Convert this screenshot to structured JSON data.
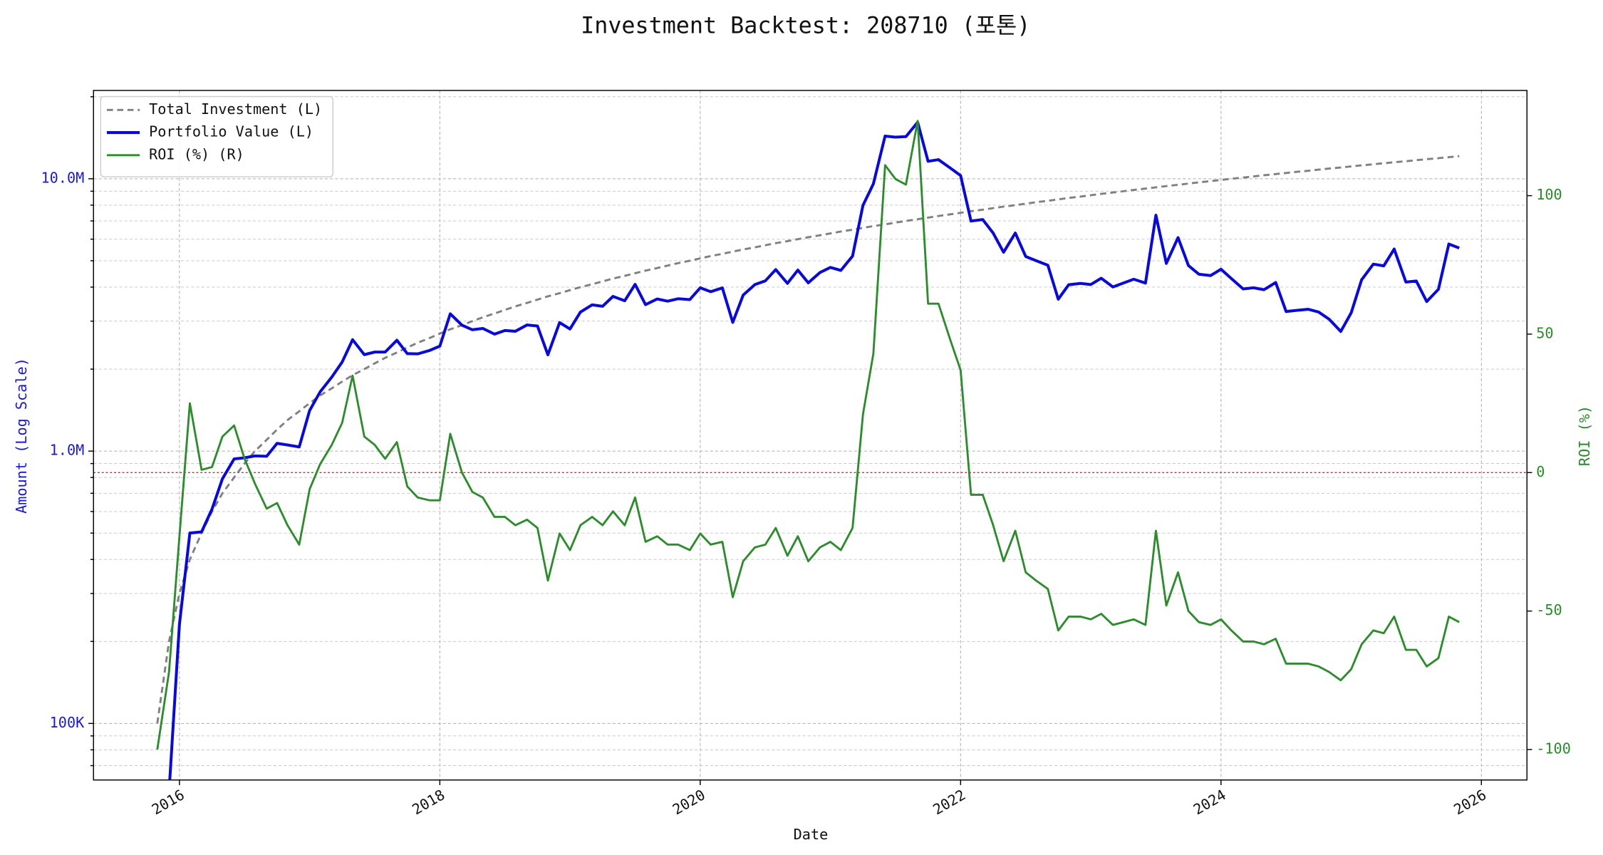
{
  "chart_data": {
    "type": "line",
    "title": "Investment Backtest: 208710 (포톤)",
    "xlabel": "Date",
    "ylabel": "Amount (Log Scale)",
    "y2label": "ROI (%)",
    "log_y": true,
    "grid": true,
    "legend": "upper left",
    "xlim": [
      2015.34,
      2026.35
    ],
    "xticks": [
      2016,
      2018,
      2020,
      2022,
      2024,
      2026
    ],
    "ylim": [
      62000,
      21100000
    ],
    "yticks": [
      {
        "value": 100000,
        "label": "100K"
      },
      {
        "value": 1000000,
        "label": "1.0M"
      },
      {
        "value": 10000000,
        "label": "10.0M"
      }
    ],
    "yminorticks": [
      70000,
      80000,
      90000,
      200000,
      300000,
      400000,
      500000,
      600000,
      700000,
      800000,
      900000,
      2000000,
      3000000,
      4000000,
      5000000,
      6000000,
      7000000,
      8000000,
      9000000,
      20000000
    ],
    "y2lim": [
      -111,
      138
    ],
    "y2ticks": [
      -100,
      -50,
      0,
      50,
      100
    ],
    "reference_lines": [
      {
        "axis": "y2",
        "value": 0,
        "color": "#d62728"
      }
    ],
    "x": [
      2015.83,
      2015.92,
      2016.0,
      2016.08,
      2016.17,
      2016.25,
      2016.33,
      2016.42,
      2016.5,
      2016.58,
      2016.67,
      2016.75,
      2016.83,
      2016.92,
      2017.0,
      2017.08,
      2017.17,
      2017.25,
      2017.33,
      2017.42,
      2017.5,
      2017.58,
      2017.67,
      2017.75,
      2017.83,
      2017.92,
      2018.0,
      2018.08,
      2018.17,
      2018.25,
      2018.33,
      2018.42,
      2018.5,
      2018.58,
      2018.67,
      2018.75,
      2018.83,
      2018.92,
      2019.0,
      2019.08,
      2019.17,
      2019.25,
      2019.33,
      2019.42,
      2019.5,
      2019.58,
      2019.67,
      2019.75,
      2019.83,
      2019.92,
      2020.0,
      2020.08,
      2020.17,
      2020.25,
      2020.33,
      2020.42,
      2020.5,
      2020.58,
      2020.67,
      2020.75,
      2020.83,
      2020.92,
      2021.0,
      2021.08,
      2021.17,
      2021.25,
      2021.33,
      2021.42,
      2021.5,
      2021.58,
      2021.67,
      2021.75,
      2021.83,
      2021.92,
      2022.0,
      2022.08,
      2022.17,
      2022.25,
      2022.33,
      2022.42,
      2022.5,
      2022.58,
      2022.67,
      2022.75,
      2022.83,
      2022.92,
      2023.0,
      2023.08,
      2023.17,
      2023.25,
      2023.33,
      2023.42,
      2023.5,
      2023.58,
      2023.67,
      2023.75,
      2023.83,
      2023.92,
      2024.0,
      2024.08,
      2024.17,
      2024.25,
      2024.33,
      2024.42,
      2024.5,
      2024.58,
      2024.67,
      2024.75,
      2024.83,
      2024.92,
      2025.0,
      2025.08,
      2025.17,
      2025.25,
      2025.33,
      2025.42,
      2025.5,
      2025.58,
      2025.67,
      2025.75,
      2025.83
    ],
    "series": [
      {
        "name": "Total Investment (L)",
        "color": "#808080",
        "linestyle": "dashed",
        "axis": "y",
        "values": [
          100000,
          200000,
          300000,
          400000,
          500000,
          600000,
          700000,
          800000,
          900000,
          1000000,
          1100000,
          1200000,
          1300000,
          1400000,
          1500000,
          1600000,
          1700000,
          1800000,
          1900000,
          2000000,
          2100000,
          2200000,
          2300000,
          2400000,
          2500000,
          2600000,
          2700000,
          2800000,
          2900000,
          3000000,
          3100000,
          3200000,
          3300000,
          3400000,
          3500000,
          3600000,
          3700000,
          3800000,
          3900000,
          4000000,
          4100000,
          4200000,
          4300000,
          4400000,
          4500000,
          4600000,
          4700000,
          4800000,
          4900000,
          5000000,
          5100000,
          5200000,
          5300000,
          5400000,
          5500000,
          5600000,
          5700000,
          5800000,
          5900000,
          6000000,
          6100000,
          6200000,
          6300000,
          6400000,
          6500000,
          6600000,
          6700000,
          6800000,
          6900000,
          7000000,
          7100000,
          7200000,
          7300000,
          7400000,
          7500000,
          7600000,
          7700000,
          7800000,
          7900000,
          8000000,
          8100000,
          8200000,
          8300000,
          8400000,
          8500000,
          8600000,
          8700000,
          8800000,
          8900000,
          9000000,
          9100000,
          9200000,
          9300000,
          9400000,
          9500000,
          9600000,
          9700000,
          9800000,
          9900000,
          10000000,
          10100000,
          10200000,
          10300000,
          10400000,
          10500000,
          10600000,
          10700000,
          10800000,
          10900000,
          11000000,
          11100000,
          11200000,
          11300000,
          11400000,
          11500000,
          11600000,
          11700000,
          11800000,
          11900000,
          12000000,
          12100000
        ]
      },
      {
        "name": "Portfolio Value (L)",
        "color": "#0a0ad6",
        "linestyle": "solid",
        "axis": "y",
        "values": [
          null,
          56000,
          231000,
          500000,
          505000,
          612000,
          791000,
          936000,
          945000,
          960000,
          957000,
          1068000,
          1053000,
          1036000,
          1410000,
          1648000,
          1870000,
          2124000,
          2565000,
          2260000,
          2310000,
          2310000,
          2553000,
          2280000,
          2275000,
          2340000,
          2430000,
          3192000,
          2900000,
          2790000,
          2821000,
          2688000,
          2772000,
          2754000,
          2905000,
          2880000,
          2257000,
          2964000,
          2808000,
          3240000,
          3444000,
          3402000,
          3698000,
          3564000,
          4095000,
          3450000,
          3619000,
          3552000,
          3626000,
          3600000,
          3978000,
          3848000,
          3975000,
          2970000,
          3740000,
          4088000,
          4218000,
          4640000,
          4130000,
          4620000,
          4148000,
          4526000,
          4725000,
          4608000,
          5200000,
          7986000,
          9581000,
          14348000,
          14214000,
          14280000,
          16117000,
          11592000,
          11753000,
          10952000,
          10275000,
          6992000,
          7084000,
          6318000,
          5372000,
          6320000,
          5184000,
          5002000,
          4814000,
          3612000,
          4080000,
          4128000,
          4089000,
          4312000,
          4005000,
          4140000,
          4277000,
          4140000,
          7347000,
          4888000,
          6080000,
          4800000,
          4462000,
          4410000,
          4653000,
          4300000,
          3939000,
          3978000,
          3914000,
          4160000,
          3255000,
          3286000,
          3317000,
          3240000,
          3052000,
          2750000,
          3219000,
          4256000,
          4859000,
          4788000,
          5520000,
          4176000,
          4212000,
          3540000,
          3927000,
          5760000,
          5566000
        ]
      },
      {
        "name": "ROI (%) (R)",
        "color": "#2e8b2e",
        "linestyle": "solid",
        "axis": "y2",
        "values": [
          -100,
          -72,
          -23,
          25,
          1,
          2,
          13,
          17,
          5,
          -4,
          -13,
          -11,
          -19,
          -26,
          -6,
          3,
          10,
          18,
          35,
          13,
          10,
          5,
          11,
          -5,
          -9,
          -10,
          -10,
          14,
          0,
          -7,
          -9,
          -16,
          -16,
          -19,
          -17,
          -20,
          -39,
          -22,
          -28,
          -19,
          -16,
          -19,
          -14,
          -19,
          -9,
          -25,
          -23,
          -26,
          -26,
          -28,
          -22,
          -26,
          -25,
          -45,
          -32,
          -27,
          -26,
          -20,
          -30,
          -23,
          -32,
          -27,
          -25,
          -28,
          -20,
          21,
          43,
          111,
          106,
          104,
          127,
          61,
          61,
          48,
          37,
          -8,
          -8,
          -19,
          -32,
          -21,
          -36,
          -39,
          -42,
          -57,
          -52,
          -52,
          -53,
          -51,
          -55,
          -54,
          -53,
          -55,
          -21,
          -48,
          -36,
          -50,
          -54,
          -55,
          -53,
          -57,
          -61,
          -61,
          -62,
          -60,
          -69,
          -69,
          -69,
          -70,
          -72,
          -75,
          -71,
          -62,
          -57,
          -58,
          -52,
          -64,
          -64,
          -70,
          -67,
          -52,
          -54
        ]
      }
    ]
  }
}
